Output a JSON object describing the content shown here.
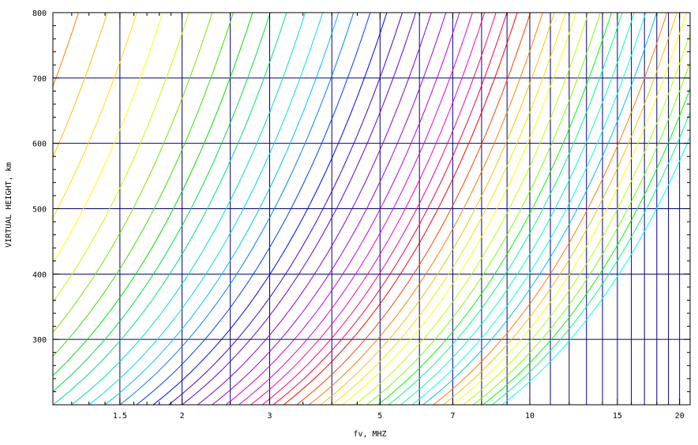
{
  "chart_data": {
    "type": "line",
    "title": "",
    "xlabel": "fv, MHZ",
    "ylabel": "VIRTUAL HEIGHT, km",
    "x_scale": "log",
    "xlim": [
      1.1,
      21
    ],
    "ylim": [
      200,
      800
    ],
    "x_ticks": [
      1.5,
      2,
      3,
      5,
      7,
      10,
      15,
      20
    ],
    "x_tick_labels": [
      "1.5",
      "2",
      "3",
      "5",
      "7",
      "10",
      "15",
      "20"
    ],
    "y_ticks": [
      300,
      400,
      500,
      600,
      700,
      800
    ],
    "y_tick_labels": [
      "300",
      "400",
      "500",
      "600",
      "700",
      "800"
    ],
    "x_minor_ticks": [
      1.2,
      1.3,
      1.4,
      1.6,
      1.7,
      1.8,
      1.9,
      2.5,
      3.5,
      4,
      4.5,
      6,
      8,
      9,
      12,
      14,
      16,
      18
    ],
    "y_minor_step": 20,
    "grid_vertical_x": [
      1.5,
      2,
      2.5,
      3,
      4,
      5,
      6,
      7,
      8,
      9,
      10,
      11,
      12,
      13,
      14,
      15,
      16,
      17,
      18,
      19,
      20
    ],
    "grid_horizontal_y": [
      300,
      400,
      500,
      600,
      700
    ],
    "grid_color": "#00007f",
    "curve_family": {
      "description_parameter": "critical frequency fc (MHz) at h = 200 km; x = fc * (h / 200)^p",
      "exponent": 0.78,
      "fc_values": [
        0.36,
        0.42,
        0.48,
        0.55,
        0.62,
        0.7,
        0.78,
        0.86,
        0.94,
        1.02,
        1.1,
        1.2,
        1.3,
        1.4,
        1.5,
        1.62,
        1.75,
        1.88,
        2.0,
        2.15,
        2.3,
        2.45,
        2.6,
        2.75,
        2.9,
        3.05,
        3.2,
        3.4,
        3.6,
        3.8,
        4.0,
        4.2,
        4.45,
        4.7,
        4.95,
        5.2,
        5.5,
        5.8,
        6.1,
        6.4,
        6.7,
        7.0,
        7.35,
        7.7,
        8.05,
        8.4,
        8.8
      ],
      "colors": [
        "#ff7f00",
        "#ff7f00",
        "#ffbf00",
        "#ffdf00",
        "#ffff00",
        "#bfff00",
        "#7fdf00",
        "#3fdf00",
        "#00df00",
        "#00df3f",
        "#00df7f",
        "#00dfbf",
        "#00dfdf",
        "#00bfff",
        "#007fff",
        "#003fff",
        "#0000ff",
        "#3f00df",
        "#5f00df",
        "#7f00df",
        "#9f00df",
        "#bf00df",
        "#df00df",
        "#ff00bf",
        "#ff007f",
        "#ff003f",
        "#ff0000",
        "#ff3f00",
        "#ff7f00",
        "#ffbf00",
        "#ffdf00",
        "#ffff00",
        "#bfff00",
        "#7fff00",
        "#00ff00",
        "#00ff7f",
        "#00ffbf",
        "#00ffff",
        "#00bfff",
        "#ff7f00",
        "#ffbf00",
        "#ffff00",
        "#bfff00",
        "#7fff00",
        "#00ff00",
        "#00ff7f",
        "#00ffff"
      ]
    }
  }
}
